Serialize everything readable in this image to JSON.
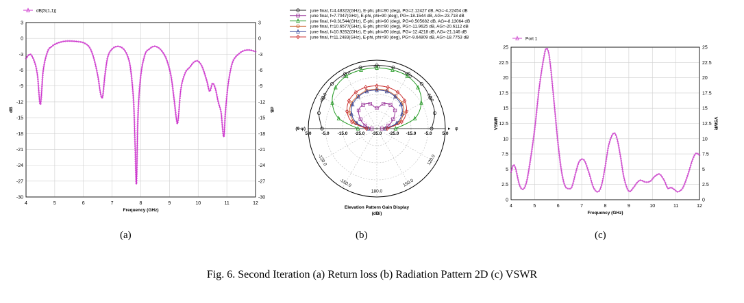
{
  "figure": {
    "caption": "Fig. 6. Second Iteration (a) Return loss (b) Radiation Pattern 2D (c) VSWR",
    "panel_labels": [
      "(a)",
      "(b)",
      "(c)"
    ]
  },
  "chart_data": [
    {
      "type": "line",
      "name": "return-loss",
      "title": "",
      "legend": "dB[S(1,1)]",
      "legend_position": "top-left",
      "xlabel": "Frequency (GHz)",
      "ylabel": "dB",
      "ylabel_right": "dB",
      "xlim": [
        4,
        12
      ],
      "ylim": [
        -30,
        3
      ],
      "xticks": [
        4,
        5,
        6,
        7,
        8,
        9,
        10,
        11,
        12
      ],
      "yticks": [
        3,
        0,
        -3,
        -6,
        -9,
        -12,
        -15,
        -18,
        -21,
        -24,
        -27,
        -30
      ],
      "grid": true,
      "color": "#cc33cc",
      "series": [
        {
          "name": "dB[S(1,1)]",
          "x": [
            4,
            4.15,
            4.3,
            4.4,
            4.5,
            4.6,
            4.75,
            4.9,
            5.05,
            5.2,
            5.4,
            5.6,
            5.8,
            6.0,
            6.2,
            6.35,
            6.5,
            6.6,
            6.67,
            6.75,
            6.85,
            7.0,
            7.2,
            7.4,
            7.55,
            7.65,
            7.75,
            7.8,
            7.85,
            7.9,
            8.0,
            8.15,
            8.3,
            8.45,
            8.6,
            8.75,
            8.9,
            9.05,
            9.15,
            9.25,
            9.3,
            9.4,
            9.55,
            9.7,
            9.85,
            10.0,
            10.15,
            10.3,
            10.4,
            10.5,
            10.6,
            10.7,
            10.8,
            10.85,
            10.9,
            10.95,
            11.05,
            11.2,
            11.4,
            11.6,
            11.8,
            12.0
          ],
          "y": [
            -3.8,
            -3.0,
            -4.5,
            -7.0,
            -12.5,
            -6.0,
            -2.5,
            -1.5,
            -1.0,
            -0.7,
            -0.5,
            -0.5,
            -0.6,
            -0.8,
            -1.6,
            -3.5,
            -7.0,
            -10.5,
            -11.0,
            -7.0,
            -3.5,
            -2.0,
            -1.5,
            -2.0,
            -3.5,
            -6.0,
            -12.0,
            -20.0,
            -27.5,
            -15.0,
            -7.0,
            -3.0,
            -2.0,
            -1.5,
            -1.7,
            -2.5,
            -4.0,
            -7.0,
            -11.0,
            -15.5,
            -15.5,
            -9.5,
            -6.5,
            -5.5,
            -4.5,
            -4.3,
            -5.5,
            -8.0,
            -10.0,
            -8.5,
            -9.5,
            -12.0,
            -14.0,
            -17.0,
            -18.5,
            -14.0,
            -8.5,
            -4.5,
            -3.0,
            -2.3,
            -2.2,
            -2.5
          ]
        }
      ]
    },
    {
      "type": "polar-line",
      "name": "radiation-pattern",
      "title": "Elevation Pattern Gain Display",
      "unit_label": "(dBi)",
      "axis_marker": "(θ-φ)",
      "phi_label": "φ",
      "angle_labels": [
        "0.0",
        "30.0",
        "60.0",
        "90.0",
        "120.0",
        "150.0",
        "180.0",
        "-150.0",
        "-120.0",
        "-90.0",
        "-60.0",
        "-30.0"
      ],
      "radial_labels": [
        "5.0",
        "-5.0",
        "-15.0",
        "-25.0",
        "-35.0"
      ],
      "rlim": [
        -35,
        5
      ],
      "grid": true,
      "legend_position": "top",
      "series": [
        {
          "name": "june final, f=4.48322(GHz), E-phi, phi=90 (deg), PG=2.12427 dB, AG=-4.22454 dB",
          "color": "#222222",
          "marker": "circle",
          "theta": [
            -90,
            -75,
            -60,
            -45,
            -30,
            -15,
            0,
            15,
            30,
            45,
            60,
            75,
            90
          ],
          "gain": [
            -3,
            0,
            1,
            2,
            2,
            2,
            2,
            2,
            2,
            2,
            1,
            0,
            -3
          ]
        },
        {
          "name": "june final, f=7.7047(GHz), E-phi, phi=90 (deg), PG=-18.1544 dB, AG=-23.718 dB",
          "color": "#993399",
          "marker": "square",
          "theta": [
            -90,
            -75,
            -60,
            -45,
            -30,
            -15,
            0,
            15,
            30,
            45,
            60,
            75,
            90
          ],
          "gain": [
            -32,
            -28,
            -24,
            -20,
            -19,
            -20,
            -23,
            -20,
            -19,
            -20,
            -24,
            -28,
            -32
          ]
        },
        {
          "name": "june final, f=9.31544(GHz), E-phi, phi=90 (deg), PG=0.505682 dB, AG=-8.13064 dB",
          "color": "#229922",
          "marker": "triangle",
          "theta": [
            -90,
            -75,
            -60,
            -45,
            -30,
            -15,
            0,
            15,
            30,
            45,
            60,
            75,
            90
          ],
          "gain": [
            -24,
            -12,
            -5,
            -1,
            0.5,
            0.5,
            0.5,
            0.5,
            0.5,
            -1,
            -5,
            -12,
            -24
          ]
        },
        {
          "name": "june final, f=10.6577(GHz), E-phi, phi=90 (deg), PG=-11.9625 dB, AG=-20.6112 dB",
          "color": "#cc6633",
          "marker": "circle",
          "theta": [
            -90,
            -75,
            -60,
            -45,
            -30,
            -15,
            0,
            15,
            30,
            45,
            60,
            75,
            90
          ],
          "gain": [
            -30,
            -22,
            -17,
            -14,
            -13,
            -12,
            -12,
            -12,
            -13,
            -14,
            -17,
            -22,
            -30
          ]
        },
        {
          "name": "june final, f=10.9262(GHz), E-phi, phi=90 (deg), PG=-12.4218 dB, AG=-21.146 dB",
          "color": "#334499",
          "marker": "triangle",
          "theta": [
            -90,
            -75,
            -60,
            -45,
            -30,
            -15,
            0,
            15,
            30,
            45,
            60,
            75,
            90
          ],
          "gain": [
            -30,
            -23,
            -18,
            -15,
            -13.5,
            -12.5,
            -12.5,
            -12.5,
            -13.5,
            -15,
            -18,
            -23,
            -30
          ]
        },
        {
          "name": "june final, f=11.2483(GHz), E-phi, phi=90 (deg), PG=-9.64809 dB, AG=-18.7753 dB",
          "color": "#cc3333",
          "marker": "diamond",
          "theta": [
            -90,
            -75,
            -60,
            -45,
            -30,
            -15,
            0,
            15,
            30,
            45,
            60,
            75,
            90
          ],
          "gain": [
            -29,
            -20,
            -15,
            -12,
            -10.5,
            -10,
            -10,
            -10,
            -10.5,
            -12,
            -15,
            -20,
            -29
          ]
        }
      ]
    },
    {
      "type": "line",
      "name": "vswr",
      "title": "",
      "legend": "Port 1",
      "legend_position": "top-left",
      "xlabel": "Frequency (GHz)",
      "ylabel": "VSWR",
      "ylabel_right": "VSWR",
      "xlim": [
        4,
        12
      ],
      "ylim": [
        0,
        25
      ],
      "xticks": [
        4,
        5,
        6,
        7,
        8,
        9,
        10,
        11,
        12
      ],
      "yticks": [
        0,
        2.5,
        5,
        7.5,
        10,
        12.5,
        15,
        17.5,
        20,
        22.5,
        25
      ],
      "grid": true,
      "color": "#cc44cc",
      "series": [
        {
          "name": "Port 1",
          "x": [
            4,
            4.1,
            4.2,
            4.35,
            4.5,
            4.65,
            4.8,
            5.0,
            5.2,
            5.4,
            5.5,
            5.6,
            5.7,
            5.85,
            6.0,
            6.15,
            6.3,
            6.5,
            6.6,
            6.75,
            6.9,
            7.1,
            7.3,
            7.5,
            7.7,
            7.85,
            8.0,
            8.15,
            8.35,
            8.5,
            8.65,
            8.8,
            9.0,
            9.2,
            9.35,
            9.5,
            9.7,
            9.9,
            10.1,
            10.3,
            10.5,
            10.65,
            10.8,
            10.95,
            11.1,
            11.3,
            11.5,
            11.7,
            11.85,
            12.0
          ],
          "y": [
            4.5,
            5.7,
            5.0,
            2.5,
            1.7,
            2.8,
            6.0,
            11.5,
            18.5,
            23.5,
            24.8,
            24.0,
            21.0,
            15.0,
            9.0,
            4.5,
            2.2,
            1.8,
            2.3,
            4.5,
            6.3,
            6.5,
            4.5,
            2.0,
            1.3,
            2.5,
            5.5,
            9.0,
            10.9,
            10.0,
            7.0,
            3.5,
            1.4,
            2.0,
            2.8,
            3.2,
            2.9,
            3.0,
            3.8,
            4.2,
            3.2,
            1.9,
            2.0,
            1.6,
            1.3,
            2.0,
            4.0,
            6.5,
            7.6,
            7.3
          ]
        }
      ]
    }
  ]
}
